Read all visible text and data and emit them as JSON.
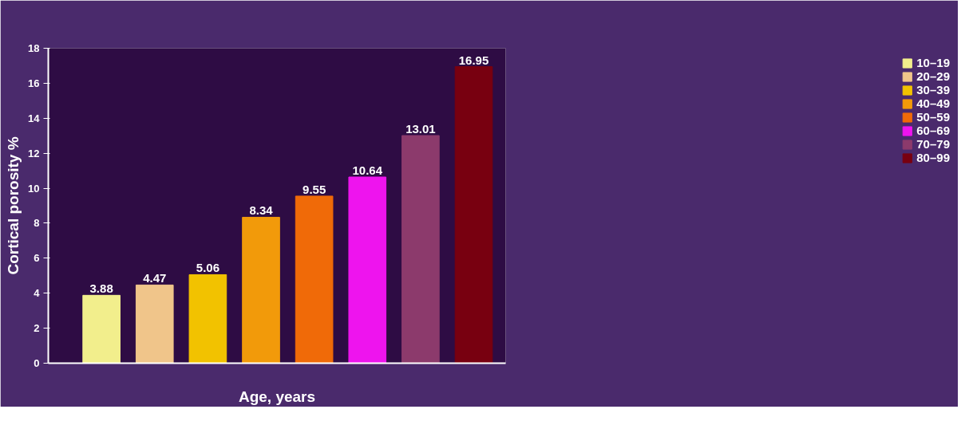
{
  "chart_data": {
    "type": "bar",
    "xlabel": "Age, years",
    "ylabel": "Cortical porosity %",
    "categories": [
      null,
      null,
      null,
      null,
      null,
      null,
      null,
      null
    ],
    "series": [
      {
        "name": "10–19",
        "color": "#f2ee8c",
        "values": [
          3.88,
          null,
          null,
          null,
          null,
          null,
          null,
          null
        ]
      },
      {
        "name": "20–29",
        "color": "#f0c58a",
        "values": [
          null,
          4.47,
          null,
          null,
          null,
          null,
          null,
          null
        ]
      },
      {
        "name": "30–39",
        "color": "#f2c200",
        "values": [
          null,
          null,
          5.06,
          null,
          null,
          null,
          null,
          null
        ]
      },
      {
        "name": "40–49",
        "color": "#f29a0a",
        "values": [
          null,
          null,
          null,
          8.34,
          null,
          null,
          null,
          null
        ]
      },
      {
        "name": "50–59",
        "color": "#f06a08",
        "values": [
          null,
          null,
          null,
          null,
          9.55,
          null,
          null,
          null
        ]
      },
      {
        "name": "60–69",
        "color": "#ee14ee",
        "values": [
          null,
          null,
          null,
          null,
          null,
          10.64,
          null,
          null
        ]
      },
      {
        "name": "70–79",
        "color": "#8c3a6c",
        "values": [
          null,
          null,
          null,
          null,
          null,
          null,
          13.01,
          null
        ]
      },
      {
        "name": "80–99",
        "color": "#780010",
        "values": [
          null,
          null,
          null,
          null,
          null,
          null,
          null,
          16.95
        ]
      }
    ],
    "ylim": [
      0,
      18
    ],
    "yticks": [
      0,
      2,
      4,
      6,
      8,
      10,
      12,
      14,
      16,
      18
    ],
    "data_labels": true,
    "legend": "right",
    "grid": false,
    "tick_labels": "y"
  }
}
